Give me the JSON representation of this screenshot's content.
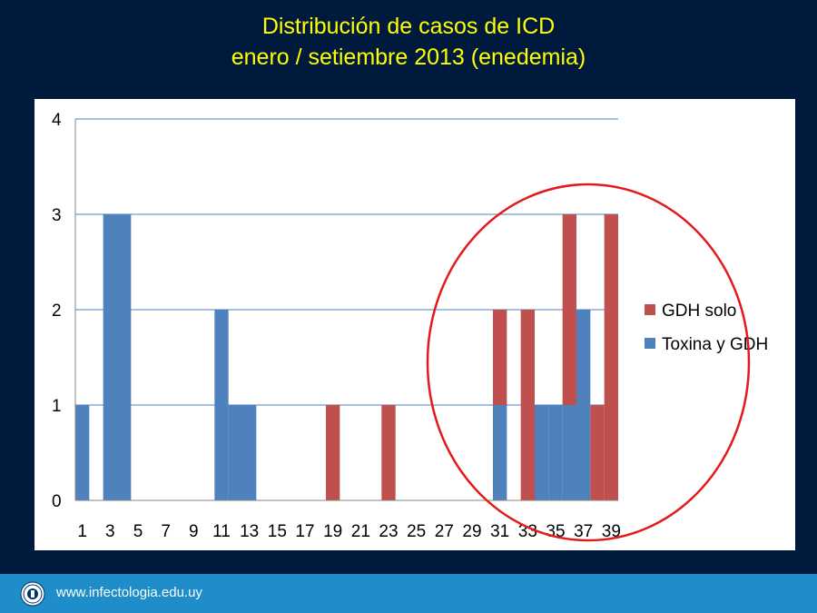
{
  "slide": {
    "title_line1": "Distribución de casos de ICD",
    "title_line2": "enero / setiembre 2013 (enedemia)",
    "footer_url": "www.infectologia.edu.uy"
  },
  "colors": {
    "background": "#001a3d",
    "title": "#ffff00",
    "toxina_y_gdh": "#4f81bd",
    "gdh_solo": "#c0504d",
    "highlight_circle": "#e31a1c",
    "footer_band": "#1f8dc9"
  },
  "chart_data": {
    "type": "bar",
    "stacked": true,
    "x": [
      1,
      2,
      3,
      4,
      5,
      6,
      7,
      8,
      9,
      10,
      11,
      12,
      13,
      14,
      15,
      16,
      17,
      18,
      19,
      20,
      21,
      22,
      23,
      24,
      25,
      26,
      27,
      28,
      29,
      30,
      31,
      32,
      33,
      34,
      35,
      36,
      37,
      38,
      39
    ],
    "x_tick_labels": [
      "1",
      "3",
      "5",
      "7",
      "9",
      "11",
      "13",
      "15",
      "17",
      "19",
      "21",
      "23",
      "25",
      "27",
      "29",
      "31",
      "33",
      "35",
      "37",
      "39"
    ],
    "y_ticks": [
      0,
      1,
      2,
      3,
      4
    ],
    "ylim": [
      0,
      4
    ],
    "grid": true,
    "legend_position": "right",
    "series": [
      {
        "name": "Toxina y GDH",
        "values": [
          1,
          0,
          3,
          3,
          0,
          0,
          0,
          0,
          0,
          0,
          2,
          1,
          1,
          0,
          0,
          0,
          0,
          0,
          0,
          0,
          0,
          0,
          0,
          0,
          0,
          0,
          0,
          0,
          0,
          0,
          1,
          0,
          0,
          1,
          1,
          1,
          2,
          0,
          0
        ]
      },
      {
        "name": "GDH solo",
        "values": [
          0,
          0,
          0,
          0,
          0,
          0,
          0,
          0,
          0,
          0,
          0,
          0,
          0,
          0,
          0,
          0,
          0,
          0,
          1,
          0,
          0,
          0,
          1,
          0,
          0,
          0,
          0,
          0,
          0,
          0,
          1,
          0,
          2,
          0,
          0,
          2,
          0,
          1,
          3
        ]
      }
    ],
    "legend_order": [
      "GDH solo",
      "Toxina y GDH"
    ],
    "annotation": "highlight-circle-around-weeks-29-39"
  }
}
